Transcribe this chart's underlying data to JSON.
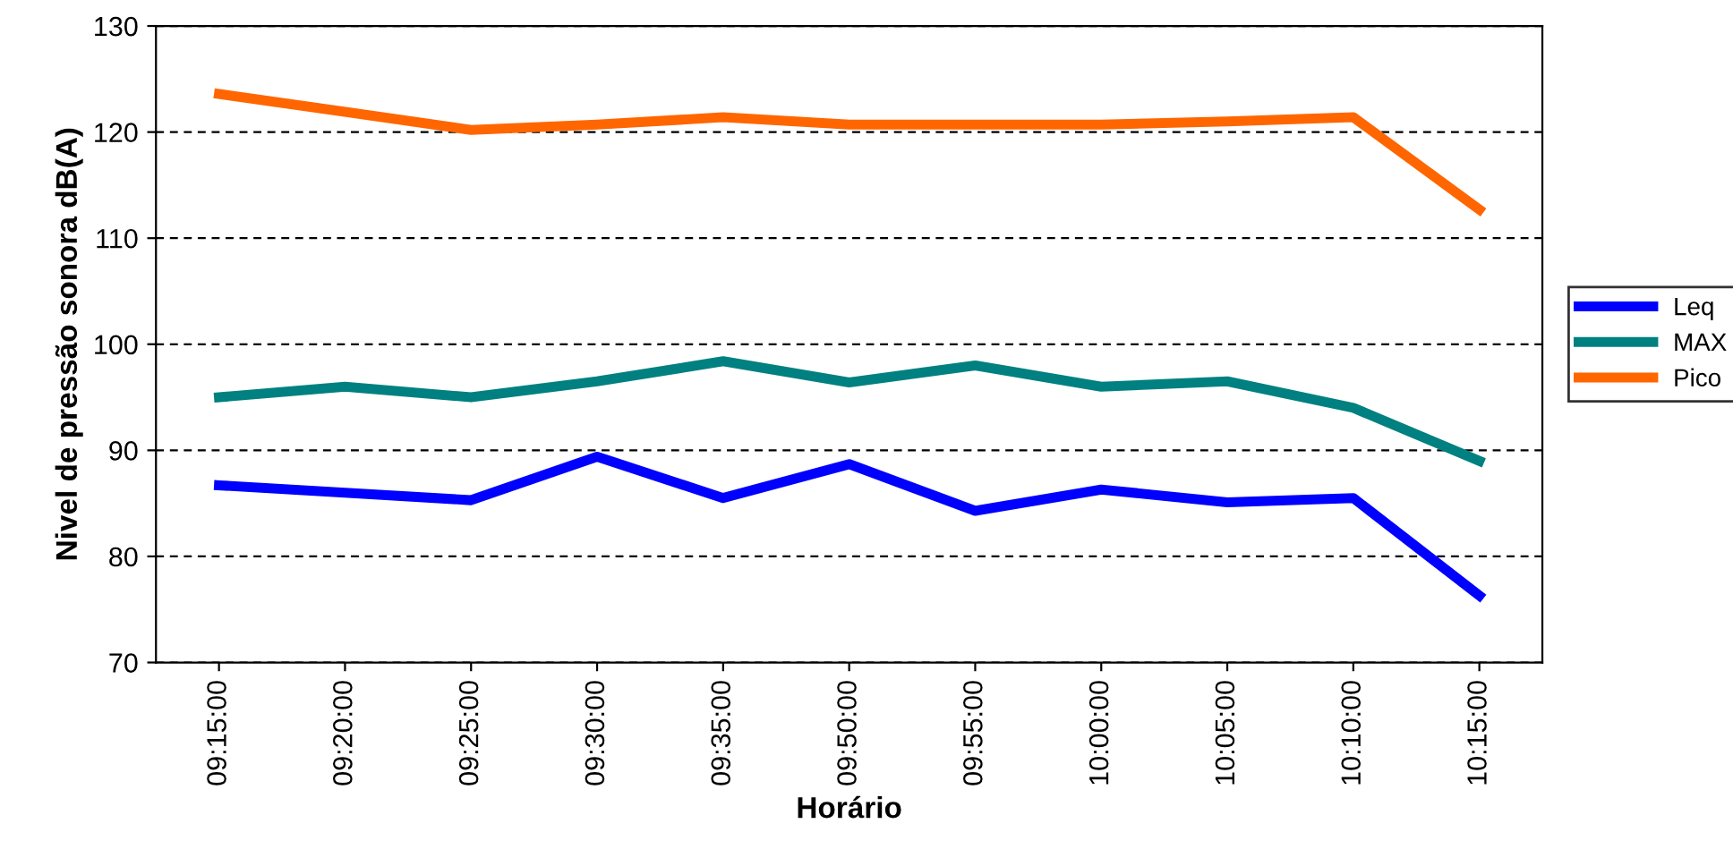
{
  "chart_data": {
    "type": "line",
    "xlabel": "Horário",
    "ylabel": "Nivel de pressão sonora dB(A)",
    "categories": [
      "09:15:00",
      "09:20:00",
      "09:25:00",
      "09:30:00",
      "09:35:00",
      "09:50:00",
      "09:55:00",
      "10:00:00",
      "10:05:00",
      "10:10:00",
      "10:15:00"
    ],
    "series": [
      {
        "name": "Leq",
        "color": "#0000ff",
        "values": [
          86.7,
          86.0,
          85.3,
          89.4,
          85.5,
          88.7,
          84.3,
          86.3,
          85.1,
          85.5,
          76.3
        ]
      },
      {
        "name": "MAX",
        "color": "#008080",
        "values": [
          95.0,
          96.0,
          95.0,
          96.5,
          98.4,
          96.4,
          98.0,
          96.0,
          96.5,
          94.0,
          89.0
        ]
      },
      {
        "name": "Pico",
        "color": "#ff6600",
        "values": [
          123.6,
          121.9,
          120.2,
          120.7,
          121.4,
          120.7,
          120.7,
          120.7,
          121.0,
          121.4,
          112.7
        ]
      }
    ],
    "ylim": [
      70,
      130
    ],
    "yticks": [
      70,
      80,
      90,
      100,
      110,
      120,
      130
    ],
    "grid": "y",
    "legend": "right",
    "line_style": "solid",
    "marker": "none"
  }
}
